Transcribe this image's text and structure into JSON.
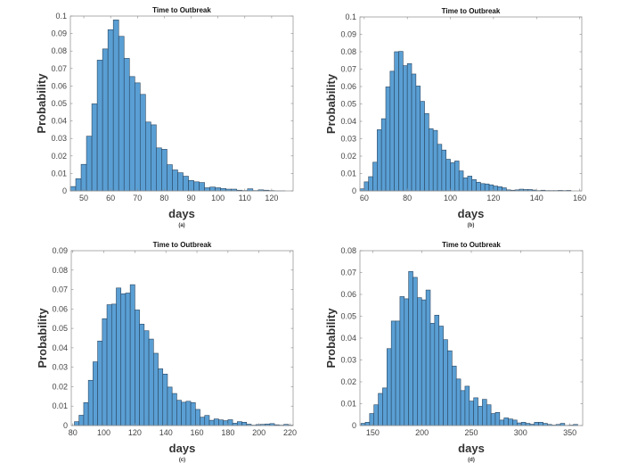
{
  "chart_data": [
    {
      "type": "bar",
      "caption": "(a)",
      "title": "Time to Outbreak",
      "xlabel": "days",
      "ylabel": "Probability",
      "xlim": [
        45,
        128
      ],
      "ylim": [
        0,
        0.1
      ],
      "bin_start": 45,
      "bin_width": 2,
      "xticks": [
        50,
        60,
        70,
        80,
        90,
        100,
        110,
        120
      ],
      "yticks": [
        "0",
        "0.01",
        "0.02",
        "0.03",
        "0.04",
        "0.05",
        "0.06",
        "0.07",
        "0.08",
        "0.09",
        "0.1"
      ],
      "values": [
        0.0025,
        0.007,
        0.0152,
        0.0313,
        0.0498,
        0.0748,
        0.0812,
        0.0922,
        0.0978,
        0.0884,
        0.0758,
        0.0654,
        0.0618,
        0.0552,
        0.0394,
        0.0378,
        0.0246,
        0.0238,
        0.015,
        0.012,
        0.0104,
        0.0084,
        0.006,
        0.0052,
        0.0048,
        0.0018,
        0.0022,
        0.0018,
        0.0014,
        0.001,
        0.001,
        0.0004,
        0.0002,
        0.0012,
        0.0002,
        0.0006,
        0.0004,
        0.0002,
        0.0001,
        0.0001
      ]
    },
    {
      "type": "bar",
      "caption": "(b)",
      "title": "Time to Outbreak",
      "xlabel": "days",
      "ylabel": "Probability",
      "xlim": [
        58,
        161
      ],
      "ylim": [
        0,
        0.1
      ],
      "bin_start": 58,
      "bin_width": 2,
      "xticks": [
        60,
        80,
        100,
        120,
        140,
        160
      ],
      "yticks": [
        "0",
        "0.01",
        "0.02",
        "0.03",
        "0.04",
        "0.05",
        "0.06",
        "0.07",
        "0.08",
        "0.09",
        "0.1"
      ],
      "values": [
        0.0012,
        0.0052,
        0.0082,
        0.0165,
        0.0352,
        0.0415,
        0.0598,
        0.0688,
        0.08,
        0.0802,
        0.072,
        0.0732,
        0.0672,
        0.0603,
        0.0515,
        0.0445,
        0.0358,
        0.0348,
        0.0268,
        0.0235,
        0.0182,
        0.0162,
        0.0172,
        0.0115,
        0.0075,
        0.0085,
        0.0065,
        0.005,
        0.0042,
        0.004,
        0.0035,
        0.0028,
        0.0024,
        0.0018,
        0.0006,
        0.0004,
        0.0006,
        0.001,
        0.0008,
        0.0008,
        0.0005,
        0.0002,
        0.0004,
        0.0002,
        0.0002,
        0.0002,
        0.0003,
        0.0002,
        0.0003
      ]
    },
    {
      "type": "bar",
      "caption": "(c)",
      "title": "Time to Outbreak",
      "xlabel": "days",
      "ylabel": "Probability",
      "xlim": [
        79,
        222
      ],
      "ylim": [
        0,
        0.09
      ],
      "bin_start": 81,
      "bin_width": 3,
      "xticks": [
        80,
        100,
        120,
        140,
        160,
        180,
        200,
        220
      ],
      "yticks": [
        "0",
        "0.01",
        "0.02",
        "0.03",
        "0.04",
        "0.05",
        "0.06",
        "0.07",
        "0.08",
        "0.09"
      ],
      "values": [
        0.002,
        0.0053,
        0.0118,
        0.0233,
        0.0328,
        0.0435,
        0.055,
        0.0622,
        0.0625,
        0.0708,
        0.0678,
        0.0682,
        0.0725,
        0.0595,
        0.0522,
        0.0488,
        0.0445,
        0.0372,
        0.0292,
        0.0265,
        0.0198,
        0.0165,
        0.013,
        0.012,
        0.0125,
        0.0118,
        0.0083,
        0.0043,
        0.0052,
        0.0027,
        0.0034,
        0.0029,
        0.0025,
        0.003,
        0.0012,
        0.002,
        0.0017,
        0.0007,
        0.0002,
        0.0005,
        0.0006,
        0.0008,
        0.001,
        0.0004,
        0.0002,
        0.0006,
        0.0002,
        0.0001,
        0.0002,
        0.0001
      ]
    },
    {
      "type": "bar",
      "caption": "(d)",
      "title": "Time to Outbreak",
      "xlabel": "days",
      "ylabel": "Probability",
      "xlim": [
        137,
        363
      ],
      "ylim": [
        0,
        0.08
      ],
      "bin_start": 138,
      "bin_width": 4.4,
      "xticks": [
        150,
        200,
        250,
        300,
        350
      ],
      "yticks": [
        "0",
        "0.01",
        "0.02",
        "0.03",
        "0.04",
        "0.05",
        "0.06",
        "0.07",
        "0.08"
      ],
      "values": [
        0.001,
        0.0015,
        0.0055,
        0.0095,
        0.0147,
        0.0172,
        0.0352,
        0.0478,
        0.0478,
        0.059,
        0.058,
        0.0705,
        0.0678,
        0.0585,
        0.0575,
        0.062,
        0.0468,
        0.0505,
        0.0455,
        0.0393,
        0.0342,
        0.0272,
        0.0213,
        0.016,
        0.018,
        0.0112,
        0.0127,
        0.0088,
        0.012,
        0.0095,
        0.0055,
        0.006,
        0.0025,
        0.0035,
        0.003,
        0.0025,
        0.0012,
        0.0015,
        0.001,
        0.0006,
        0.0015,
        0.0015,
        0.001,
        0.0005,
        0.0002,
        0.0005,
        0.001,
        0.0001,
        0.0002,
        0.0005
      ]
    }
  ],
  "colors": {
    "bar_fill": "#5a9fd4",
    "bar_edge": "#2b4660",
    "axis": "#999999"
  }
}
